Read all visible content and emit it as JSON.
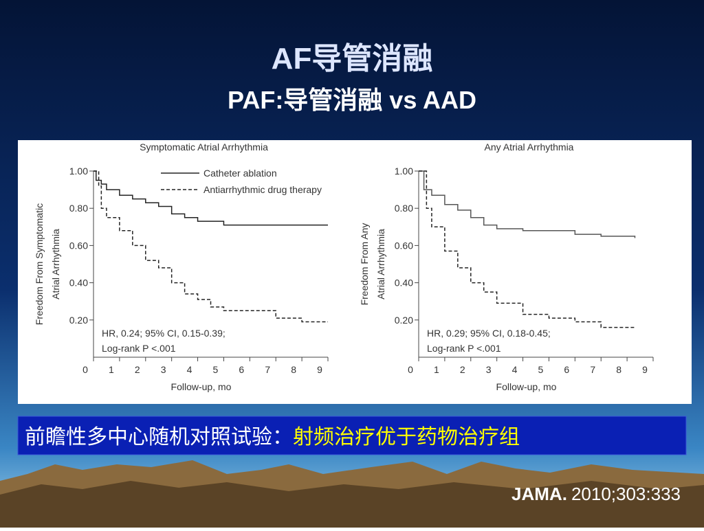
{
  "slide": {
    "title": "AF导管消融",
    "subtitle": "PAF:导管消融 vs AAD",
    "banner_white": "前瞻性多中心随机对照试验：",
    "banner_yellow": "射频治疗优于药物治疗组",
    "citation_journal": "JAMA.",
    "citation_ref": "2010;303:333"
  },
  "chart_data": [
    {
      "type": "line",
      "step": true,
      "title": "Symptomatic Atrial Arrhythmia",
      "ylabel": [
        "Freedom From Symptomatic",
        "Atrial Arrhythmia"
      ],
      "xlabel": "Follow-up, mo",
      "annotation": [
        "HR, 0.24; 95% CI, 0.15-0.39;",
        "Log-rank P <.001"
      ],
      "xlim": [
        0,
        9
      ],
      "ylim": [
        0,
        1
      ],
      "xticks": [
        0,
        1,
        2,
        3,
        4,
        5,
        6,
        7,
        8,
        9
      ],
      "yticks": [
        {
          "value": 0.2,
          "label": "0.20"
        },
        {
          "value": 0.4,
          "label": "0.40"
        },
        {
          "value": 0.6,
          "label": "0.60"
        },
        {
          "value": 0.8,
          "label": "0.80"
        },
        {
          "value": 1,
          "label": "1.00"
        }
      ],
      "legend": "top-right",
      "series": [
        {
          "name": "Catheter ablation",
          "color": "#222222",
          "dash": false,
          "x": [
            0,
            0.1,
            0.3,
            0.5,
            1,
            1.5,
            2,
            2.5,
            3,
            3.5,
            4,
            5,
            9
          ],
          "values": [
            1,
            0.95,
            0.93,
            0.9,
            0.87,
            0.85,
            0.83,
            0.81,
            0.77,
            0.75,
            0.73,
            0.71,
            0.71
          ]
        },
        {
          "name": "Antiarrhythmic drug therapy",
          "color": "#222222",
          "dash": true,
          "x": [
            0,
            0.2,
            0.3,
            0.5,
            1,
            1.5,
            2,
            2.5,
            3,
            3.5,
            4,
            4.5,
            5,
            7,
            8,
            9
          ],
          "values": [
            1,
            0.92,
            0.8,
            0.75,
            0.68,
            0.6,
            0.52,
            0.48,
            0.4,
            0.34,
            0.31,
            0.27,
            0.25,
            0.21,
            0.19,
            0.19
          ]
        }
      ]
    },
    {
      "type": "line",
      "step": true,
      "title": "Any Atrial Arrhythmia",
      "ylabel": [
        "Freedom From Any",
        "Atrial Arrhythmia"
      ],
      "xlabel": "Follow-up, mo",
      "annotation": [
        "HR, 0.29; 95% CI, 0.18-0.45;",
        "Log-rank P <.001"
      ],
      "xlim": [
        0,
        9
      ],
      "ylim": [
        0,
        1
      ],
      "xticks": [
        0,
        1,
        2,
        3,
        4,
        5,
        6,
        7,
        8,
        9
      ],
      "yticks": [
        {
          "value": 0.2,
          "label": "0.20"
        },
        {
          "value": 0.4,
          "label": "0.40"
        },
        {
          "value": 0.6,
          "label": "0.60"
        },
        {
          "value": 0.8,
          "label": "0.80"
        },
        {
          "value": 1,
          "label": "1.00"
        }
      ],
      "series": [
        {
          "color": "#555555",
          "dash": false,
          "x": [
            0,
            0.2,
            0.5,
            1,
            1.5,
            2,
            2.5,
            3,
            4,
            5,
            6,
            7,
            8.3
          ],
          "values": [
            1,
            0.9,
            0.87,
            0.82,
            0.79,
            0.75,
            0.71,
            0.69,
            0.68,
            0.68,
            0.66,
            0.65,
            0.64
          ]
        },
        {
          "color": "#222222",
          "dash": true,
          "x": [
            0,
            0.3,
            0.5,
            1,
            1.5,
            2,
            2.5,
            3,
            4,
            5,
            6,
            7,
            8.3
          ],
          "values": [
            1,
            0.8,
            0.7,
            0.57,
            0.48,
            0.4,
            0.35,
            0.29,
            0.23,
            0.21,
            0.19,
            0.16,
            0.16
          ]
        }
      ]
    }
  ]
}
